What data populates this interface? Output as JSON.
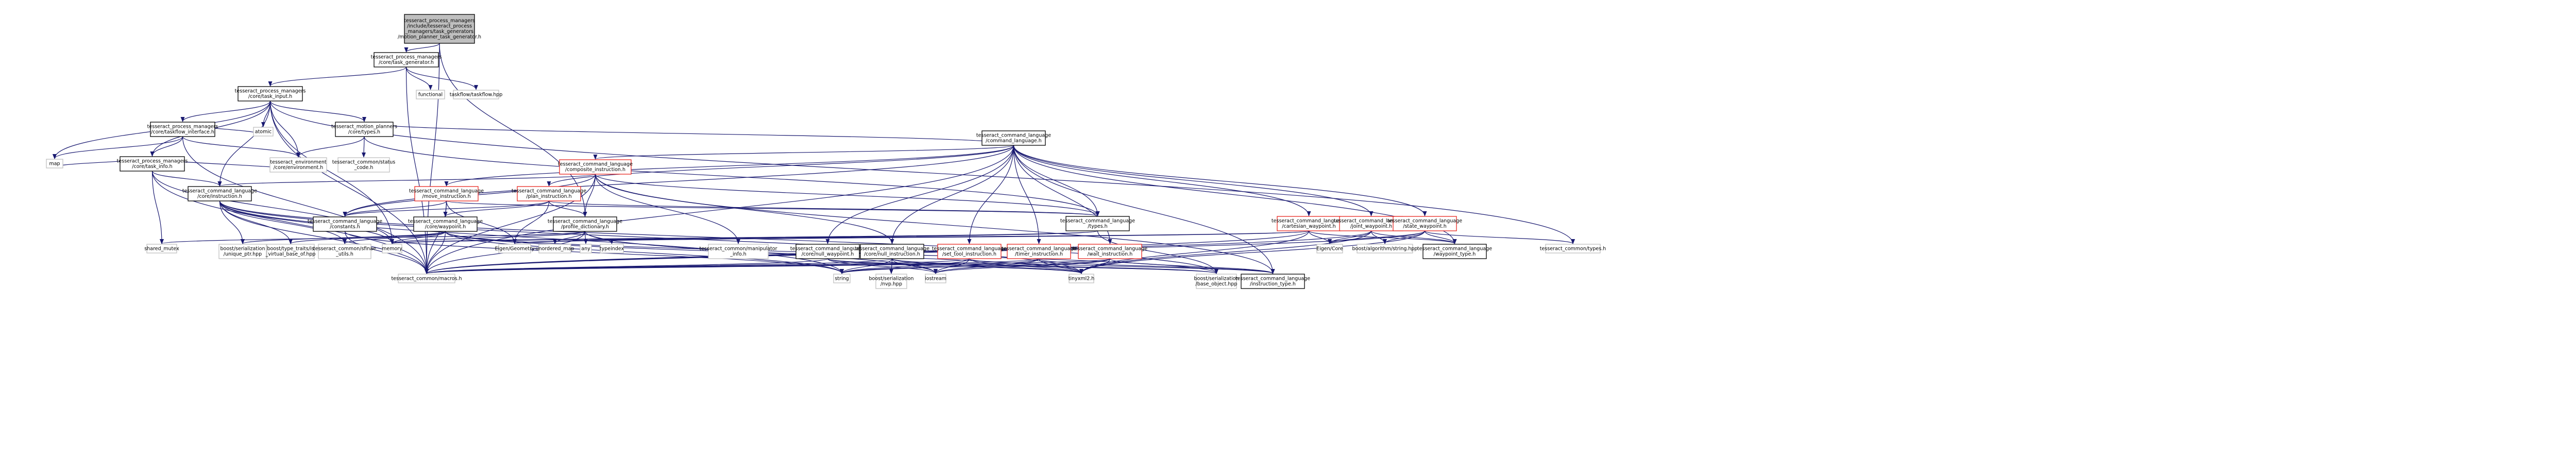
{
  "graph": {
    "nodes": [
      {
        "id": "root",
        "lines": [
          "tesseract_process_managers",
          "/include/tesseract_process",
          "_managers/task_generators",
          "/motion_planner_task_generator.h"
        ],
        "style": "root"
      },
      {
        "id": "task_generator",
        "lines": [
          "tesseract_process_managers",
          "/core/task_generator.h"
        ],
        "style": "normal"
      },
      {
        "id": "functional",
        "lines": [
          "functional"
        ],
        "style": "gray"
      },
      {
        "id": "taskflow",
        "lines": [
          "taskflow/taskflow.hpp"
        ],
        "style": "gray"
      },
      {
        "id": "task_input",
        "lines": [
          "tesseract_process_managers",
          "/core/task_input.h"
        ],
        "style": "normal"
      },
      {
        "id": "taskflow_interface",
        "lines": [
          "tesseract_process_managers",
          "/core/taskflow_interface.h"
        ],
        "style": "normal"
      },
      {
        "id": "mp_types",
        "lines": [
          "tesseract_motion_planners",
          "/core/types.h"
        ],
        "style": "normal"
      },
      {
        "id": "atomic",
        "lines": [
          "atomic"
        ],
        "style": "gray"
      },
      {
        "id": "task_info",
        "lines": [
          "tesseract_process_managers",
          "/core/task_info.h"
        ],
        "style": "normal"
      },
      {
        "id": "status_code",
        "lines": [
          "tesseract_common/status",
          "_code.h"
        ],
        "style": "gray"
      },
      {
        "id": "map",
        "lines": [
          "map"
        ],
        "style": "gray"
      },
      {
        "id": "environment",
        "lines": [
          "tesseract_environment",
          "/core/environment.h"
        ],
        "style": "gray"
      },
      {
        "id": "command_language",
        "lines": [
          "tesseract_command_language",
          "/command_language.h"
        ],
        "style": "normal"
      },
      {
        "id": "composite",
        "lines": [
          "tesseract_command_language",
          "/composite_instruction.h"
        ],
        "style": "red"
      },
      {
        "id": "core_instruction",
        "lines": [
          "tesseract_command_language",
          "/core/instruction.h"
        ],
        "style": "normal"
      },
      {
        "id": "move_instruction",
        "lines": [
          "tesseract_command_language",
          "/move_instruction.h"
        ],
        "style": "red"
      },
      {
        "id": "plan_instruction",
        "lines": [
          "tesseract_command_language",
          "/plan_instruction.h"
        ],
        "style": "red"
      },
      {
        "id": "constants",
        "lines": [
          "tesseract_command_language",
          "/constants.h"
        ],
        "style": "normal"
      },
      {
        "id": "core_waypoint",
        "lines": [
          "tesseract_command_language",
          "/core/waypoint.h"
        ],
        "style": "normal"
      },
      {
        "id": "profile_dictionary",
        "lines": [
          "tesseract_command_language",
          "/profile_dictionary.h"
        ],
        "style": "normal"
      },
      {
        "id": "cl_types",
        "lines": [
          "tesseract_command_language",
          "/types.h"
        ],
        "style": "normal"
      },
      {
        "id": "cartesian_waypoint",
        "lines": [
          "tesseract_command_language",
          "/cartesian_waypoint.h"
        ],
        "style": "red"
      },
      {
        "id": "joint_waypoint",
        "lines": [
          "tesseract_command_language",
          "/joint_waypoint.h"
        ],
        "style": "red"
      },
      {
        "id": "state_waypoint",
        "lines": [
          "tesseract_command_language",
          "/state_waypoint.h"
        ],
        "style": "red"
      },
      {
        "id": "common_types",
        "lines": [
          "tesseract_common/types.h"
        ],
        "style": "gray"
      },
      {
        "id": "shared_mutex",
        "lines": [
          "shared_mutex"
        ],
        "style": "gray"
      },
      {
        "id": "unique_ptr",
        "lines": [
          "boost/serialization",
          "/unique_ptr.hpp"
        ],
        "style": "gray"
      },
      {
        "id": "type_traits",
        "lines": [
          "boost/type_traits/is",
          "_virtual_base_of.hpp"
        ],
        "style": "gray"
      },
      {
        "id": "sfinae",
        "lines": [
          "tesseract_common/sfinae",
          "_utils.h"
        ],
        "style": "gray"
      },
      {
        "id": "memory",
        "lines": [
          "memory"
        ],
        "style": "gray"
      },
      {
        "id": "eigen_geometry",
        "lines": [
          "Eigen/Geometry"
        ],
        "style": "gray"
      },
      {
        "id": "unordered_map",
        "lines": [
          "unordered_map"
        ],
        "style": "gray"
      },
      {
        "id": "any",
        "lines": [
          "any"
        ],
        "style": "gray"
      },
      {
        "id": "typeindex",
        "lines": [
          "typeindex"
        ],
        "style": "gray"
      },
      {
        "id": "manipulator_info",
        "lines": [
          "tesseract_common/manipulator",
          "_info.h"
        ],
        "style": "gray"
      },
      {
        "id": "null_waypoint",
        "lines": [
          "tesseract_command_language",
          "/core/null_waypoint.h"
        ],
        "style": "normal"
      },
      {
        "id": "null_instruction",
        "lines": [
          "tesseract_command_language",
          "/core/null_instruction.h"
        ],
        "style": "normal"
      },
      {
        "id": "set_tool_instruction",
        "lines": [
          "tesseract_command_language",
          "/set_tool_instruction.h"
        ],
        "style": "red"
      },
      {
        "id": "timer_instruction",
        "lines": [
          "tesseract_command_language",
          "/timer_instruction.h"
        ],
        "style": "red"
      },
      {
        "id": "wait_instruction",
        "lines": [
          "tesseract_command_language",
          "/wait_instruction.h"
        ],
        "style": "red"
      },
      {
        "id": "eigen_core",
        "lines": [
          "Eigen/Core"
        ],
        "style": "gray"
      },
      {
        "id": "algorithm_string",
        "lines": [
          "boost/algorithm/string.hpp"
        ],
        "style": "gray"
      },
      {
        "id": "waypoint_type",
        "lines": [
          "tesseract_command_language",
          "/waypoint_type.h"
        ],
        "style": "normal"
      },
      {
        "id": "macros",
        "lines": [
          "tesseract_common/macros.h"
        ],
        "style": "gray"
      },
      {
        "id": "string",
        "lines": [
          "string"
        ],
        "style": "gray"
      },
      {
        "id": "nvp",
        "lines": [
          "boost/serialization",
          "/nvp.hpp"
        ],
        "style": "gray"
      },
      {
        "id": "iostream",
        "lines": [
          "iostream"
        ],
        "style": "gray"
      },
      {
        "id": "tinyxml2",
        "lines": [
          "tinyxml2.h"
        ],
        "style": "gray"
      },
      {
        "id": "base_object",
        "lines": [
          "boost/serialization",
          "/base_object.hpp"
        ],
        "style": "gray"
      },
      {
        "id": "instruction_type",
        "lines": [
          "tesseract_command_language",
          "/instruction_type.h"
        ],
        "style": "normal"
      }
    ],
    "edges": [
      [
        "root",
        "task_generator"
      ],
      [
        "root",
        "profile_dictionary"
      ],
      [
        "root",
        "macros"
      ],
      [
        "task_generator",
        "functional"
      ],
      [
        "task_generator",
        "taskflow"
      ],
      [
        "task_generator",
        "task_input"
      ],
      [
        "task_generator",
        "macros"
      ],
      [
        "task_input",
        "taskflow_interface"
      ],
      [
        "task_input",
        "task_info"
      ],
      [
        "task_input",
        "mp_types"
      ],
      [
        "task_input",
        "atomic"
      ],
      [
        "task_input",
        "map"
      ],
      [
        "task_input",
        "environment"
      ],
      [
        "task_input",
        "core_instruction"
      ],
      [
        "task_input",
        "memory"
      ],
      [
        "task_input",
        "common_types"
      ],
      [
        "task_input",
        "macros"
      ],
      [
        "taskflow_interface",
        "task_info"
      ],
      [
        "taskflow_interface",
        "atomic"
      ],
      [
        "taskflow_interface",
        "map"
      ],
      [
        "taskflow_interface",
        "environment"
      ],
      [
        "taskflow_interface",
        "macros"
      ],
      [
        "task_info",
        "map"
      ],
      [
        "task_info",
        "environment"
      ],
      [
        "task_info",
        "core_instruction"
      ],
      [
        "task_info",
        "shared_mutex"
      ],
      [
        "task_info",
        "memory"
      ],
      [
        "task_info",
        "macros"
      ],
      [
        "mp_types",
        "status_code"
      ],
      [
        "mp_types",
        "environment"
      ],
      [
        "mp_types",
        "command_language"
      ],
      [
        "mp_types",
        "cl_types"
      ],
      [
        "command_language",
        "composite"
      ],
      [
        "command_language",
        "move_instruction"
      ],
      [
        "command_language",
        "plan_instruction"
      ],
      [
        "command_language",
        "constants"
      ],
      [
        "command_language",
        "cl_types"
      ],
      [
        "command_language",
        "cartesian_waypoint"
      ],
      [
        "command_language",
        "joint_waypoint"
      ],
      [
        "command_language",
        "state_waypoint"
      ],
      [
        "command_language",
        "null_waypoint"
      ],
      [
        "command_language",
        "null_instruction"
      ],
      [
        "command_language",
        "set_tool_instruction"
      ],
      [
        "command_language",
        "timer_instruction"
      ],
      [
        "command_language",
        "wait_instruction"
      ],
      [
        "command_language",
        "instruction_type"
      ],
      [
        "command_language",
        "waypoint_type"
      ],
      [
        "command_language",
        "macros"
      ],
      [
        "composite",
        "core_instruction"
      ],
      [
        "composite",
        "constants"
      ],
      [
        "composite",
        "profile_dictionary"
      ],
      [
        "composite",
        "cl_types"
      ],
      [
        "composite",
        "null_instruction"
      ],
      [
        "composite",
        "manipulator_info"
      ],
      [
        "composite",
        "instruction_type"
      ],
      [
        "composite",
        "macros"
      ],
      [
        "core_instruction",
        "unique_ptr"
      ],
      [
        "core_instruction",
        "type_traits"
      ],
      [
        "core_instruction",
        "sfinae"
      ],
      [
        "core_instruction",
        "memory"
      ],
      [
        "core_instruction",
        "string"
      ],
      [
        "core_instruction",
        "tinyxml2"
      ],
      [
        "core_instruction",
        "base_object"
      ],
      [
        "core_instruction",
        "macros"
      ],
      [
        "move_instruction",
        "constants"
      ],
      [
        "move_instruction",
        "core_waypoint"
      ],
      [
        "move_instruction",
        "eigen_geometry"
      ],
      [
        "move_instruction",
        "cl_types"
      ],
      [
        "move_instruction",
        "macros"
      ],
      [
        "plan_instruction",
        "constants"
      ],
      [
        "plan_instruction",
        "core_waypoint"
      ],
      [
        "plan_instruction",
        "profile_dictionary"
      ],
      [
        "plan_instruction",
        "eigen_geometry"
      ],
      [
        "plan_instruction",
        "cl_types"
      ],
      [
        "constants",
        "string"
      ],
      [
        "constants",
        "macros"
      ],
      [
        "core_waypoint",
        "unique_ptr"
      ],
      [
        "core_waypoint",
        "type_traits"
      ],
      [
        "core_waypoint",
        "sfinae"
      ],
      [
        "core_waypoint",
        "memory"
      ],
      [
        "core_waypoint",
        "string"
      ],
      [
        "core_waypoint",
        "tinyxml2"
      ],
      [
        "core_waypoint",
        "base_object"
      ],
      [
        "core_waypoint",
        "macros"
      ],
      [
        "profile_dictionary",
        "unordered_map"
      ],
      [
        "profile_dictionary",
        "any"
      ],
      [
        "profile_dictionary",
        "typeindex"
      ],
      [
        "profile_dictionary",
        "shared_mutex"
      ],
      [
        "profile_dictionary",
        "memory"
      ],
      [
        "profile_dictionary",
        "iostream"
      ],
      [
        "profile_dictionary",
        "macros"
      ],
      [
        "cl_types",
        "eigen_geometry"
      ],
      [
        "cl_types",
        "memory"
      ],
      [
        "cl_types",
        "base_object"
      ],
      [
        "cartesian_waypoint",
        "eigen_geometry"
      ],
      [
        "cartesian_waypoint",
        "memory"
      ],
      [
        "cartesian_waypoint",
        "eigen_core"
      ],
      [
        "cartesian_waypoint",
        "waypoint_type"
      ],
      [
        "cartesian_waypoint",
        "tinyxml2"
      ],
      [
        "cartesian_waypoint",
        "macros"
      ],
      [
        "joint_waypoint",
        "eigen_core"
      ],
      [
        "joint_waypoint",
        "algorithm_string"
      ],
      [
        "joint_waypoint",
        "waypoint_type"
      ],
      [
        "joint_waypoint",
        "tinyxml2"
      ],
      [
        "joint_waypoint",
        "macros"
      ],
      [
        "state_waypoint",
        "eigen_core"
      ],
      [
        "state_waypoint",
        "algorithm_string"
      ],
      [
        "state_waypoint",
        "waypoint_type"
      ],
      [
        "state_waypoint",
        "common_types"
      ],
      [
        "state_waypoint",
        "tinyxml2"
      ],
      [
        "state_waypoint",
        "macros"
      ],
      [
        "null_waypoint",
        "iostream"
      ],
      [
        "null_waypoint",
        "tinyxml2"
      ],
      [
        "null_waypoint",
        "base_object"
      ],
      [
        "null_waypoint",
        "macros"
      ],
      [
        "null_instruction",
        "iostream"
      ],
      [
        "null_instruction",
        "string"
      ],
      [
        "null_instruction",
        "nvp"
      ],
      [
        "null_instruction",
        "tinyxml2"
      ],
      [
        "null_instruction",
        "base_object"
      ],
      [
        "null_instruction",
        "macros"
      ],
      [
        "set_tool_instruction",
        "iostream"
      ],
      [
        "set_tool_instruction",
        "string"
      ],
      [
        "set_tool_instruction",
        "tinyxml2"
      ],
      [
        "set_tool_instruction",
        "instruction_type"
      ],
      [
        "set_tool_instruction",
        "macros"
      ],
      [
        "timer_instruction",
        "iostream"
      ],
      [
        "timer_instruction",
        "string"
      ],
      [
        "timer_instruction",
        "tinyxml2"
      ],
      [
        "timer_instruction",
        "instruction_type"
      ],
      [
        "timer_instruction",
        "macros"
      ],
      [
        "wait_instruction",
        "iostream"
      ],
      [
        "wait_instruction",
        "string"
      ],
      [
        "wait_instruction",
        "tinyxml2"
      ],
      [
        "wait_instruction",
        "instruction_type"
      ],
      [
        "wait_instruction",
        "macros"
      ]
    ]
  },
  "colors": {
    "edge": "#191970",
    "node_border": "#000000",
    "node_border_incomplete": "#e8261f",
    "node_border_external": "#bfbfbf",
    "root_fill": "#bfbfbf",
    "background": "#ffffff"
  }
}
